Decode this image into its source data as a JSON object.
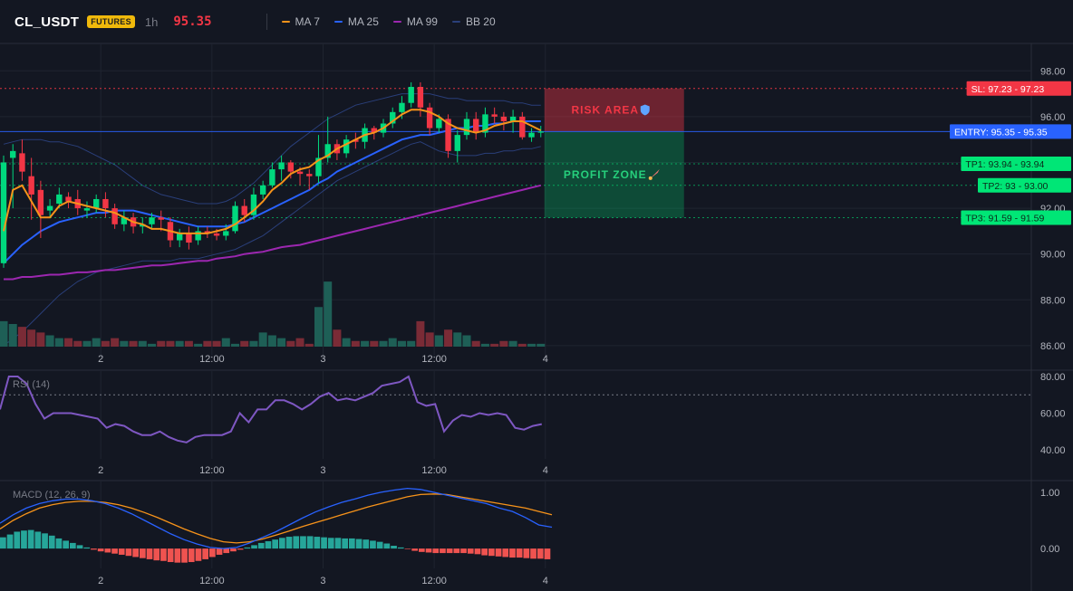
{
  "header": {
    "symbol": "CL_USDT",
    "badge": "FUTURES",
    "timeframe": "1h",
    "price": "95.35",
    "legend": [
      {
        "label": "MA 7",
        "color": "#f7931a"
      },
      {
        "label": "MA 25",
        "color": "#2962ff"
      },
      {
        "label": "MA 99",
        "color": "#9c27b0"
      },
      {
        "label": "BB 20",
        "color": "#2a3f7a"
      }
    ]
  },
  "colors": {
    "bull": "#089981",
    "bull_bright": "#00e676",
    "bear": "#f23645",
    "grid": "#1f2430",
    "axis_text": "#b2b5be",
    "entry": "#2962ff",
    "sl": "#f23645",
    "tp": "#00e676",
    "rsi": "#7e57c2",
    "macd_line": "#2962ff",
    "signal_line": "#f7931a"
  },
  "chart_data": [
    {
      "type": "candlestick",
      "title": "",
      "x_ticks": [
        "2",
        "12:00",
        "3",
        "12:00",
        "4"
      ],
      "x_tick_index": [
        10,
        22,
        34,
        46,
        58
      ],
      "ylim": [
        85.6,
        99.0
      ],
      "y_ticks": [
        86.0,
        88.0,
        90.0,
        92.0,
        94.0,
        96.0,
        98.0
      ],
      "candles": [
        [
          89.6,
          94.0,
          89.4,
          94.3
        ],
        [
          94.2,
          94.5,
          92.0,
          94.8
        ],
        [
          94.4,
          93.6,
          93.2,
          95.0
        ],
        [
          93.4,
          92.6,
          91.5,
          94.2
        ],
        [
          92.8,
          91.7,
          90.7,
          93.2
        ],
        [
          91.9,
          92.1,
          91.6,
          92.4
        ],
        [
          92.2,
          92.6,
          92.0,
          92.9
        ],
        [
          92.5,
          92.3,
          92.0,
          92.7
        ],
        [
          92.4,
          92.0,
          91.7,
          92.8
        ],
        [
          91.9,
          92.0,
          91.6,
          92.3
        ],
        [
          92.0,
          92.4,
          91.8,
          92.6
        ],
        [
          92.4,
          92.0,
          91.6,
          92.7
        ],
        [
          92.0,
          91.3,
          91.1,
          92.2
        ],
        [
          91.3,
          91.6,
          91.0,
          91.9
        ],
        [
          91.6,
          91.2,
          90.9,
          91.8
        ],
        [
          91.2,
          91.3,
          90.9,
          91.6
        ],
        [
          91.3,
          91.6,
          91.1,
          91.8
        ],
        [
          91.6,
          91.5,
          91.0,
          91.9
        ],
        [
          91.4,
          90.6,
          90.3,
          91.6
        ],
        [
          90.6,
          90.9,
          90.3,
          91.1
        ],
        [
          90.9,
          90.5,
          90.2,
          91.2
        ],
        [
          90.6,
          91.0,
          90.4,
          91.2
        ],
        [
          91.0,
          90.9,
          90.7,
          91.2
        ],
        [
          90.9,
          90.8,
          90.6,
          91.1
        ],
        [
          90.8,
          91.0,
          90.6,
          91.3
        ],
        [
          91.0,
          92.1,
          90.9,
          92.3
        ],
        [
          92.1,
          91.7,
          91.4,
          92.4
        ],
        [
          91.7,
          92.6,
          91.5,
          92.9
        ],
        [
          92.6,
          93.0,
          92.4,
          93.2
        ],
        [
          93.0,
          93.7,
          92.9,
          94.0
        ],
        [
          93.7,
          94.0,
          93.2,
          94.3
        ],
        [
          94.0,
          93.6,
          93.3,
          94.1
        ],
        [
          93.6,
          93.5,
          93.0,
          93.8
        ],
        [
          93.5,
          93.4,
          92.8,
          93.7
        ],
        [
          93.4,
          94.2,
          93.1,
          95.2
        ],
        [
          94.2,
          94.8,
          94.0,
          96.0
        ],
        [
          94.8,
          94.4,
          94.1,
          95.0
        ],
        [
          94.4,
          95.0,
          94.2,
          95.2
        ],
        [
          95.0,
          94.9,
          94.6,
          95.3
        ],
        [
          94.9,
          95.5,
          94.6,
          95.7
        ],
        [
          95.5,
          95.3,
          95.0,
          95.6
        ],
        [
          95.3,
          95.7,
          95.1,
          95.9
        ],
        [
          95.7,
          96.2,
          95.5,
          96.4
        ],
        [
          96.2,
          96.6,
          95.9,
          96.9
        ],
        [
          96.6,
          97.3,
          96.4,
          97.5
        ],
        [
          97.3,
          96.4,
          96.0,
          97.5
        ],
        [
          96.4,
          95.5,
          95.2,
          96.6
        ],
        [
          95.5,
          95.9,
          95.3,
          96.1
        ],
        [
          95.9,
          94.5,
          94.2,
          96.1
        ],
        [
          94.5,
          95.2,
          94.0,
          95.4
        ],
        [
          95.2,
          95.9,
          95.0,
          96.2
        ],
        [
          95.9,
          95.3,
          95.0,
          96.2
        ],
        [
          95.3,
          96.1,
          95.1,
          96.4
        ],
        [
          96.1,
          96.0,
          95.7,
          96.4
        ],
        [
          96.0,
          95.8,
          95.4,
          96.2
        ],
        [
          95.8,
          96.0,
          95.3,
          96.3
        ],
        [
          96.0,
          95.1,
          95.0,
          96.2
        ],
        [
          95.1,
          95.3,
          94.9,
          95.5
        ],
        [
          95.3,
          95.35,
          95.1,
          95.6
        ]
      ],
      "volume": [
        9,
        8,
        7,
        6,
        5,
        4,
        3,
        3,
        2,
        2,
        3,
        2,
        3,
        2,
        2,
        2,
        1,
        2,
        2,
        2,
        2,
        1,
        2,
        2,
        3,
        1,
        2,
        2,
        5,
        4,
        3,
        2,
        3,
        1,
        14,
        23,
        6,
        3,
        2,
        2,
        2,
        2,
        3,
        2,
        2,
        9,
        5,
        4,
        6,
        5,
        4,
        2,
        1,
        1,
        2,
        2,
        1,
        1,
        1
      ],
      "ma7": [
        91.0,
        92.8,
        93.0,
        92.3,
        91.6,
        91.6,
        92.1,
        92.3,
        92.2,
        92.1,
        92.0,
        91.9,
        91.8,
        91.6,
        91.4,
        91.3,
        91.1,
        91.1,
        91.0,
        90.9,
        90.9,
        90.9,
        90.9,
        91.0,
        91.1,
        91.3,
        91.6,
        91.9,
        92.3,
        92.8,
        93.1,
        93.5,
        93.7,
        93.8,
        94.1,
        94.3,
        94.6,
        94.8,
        95.0,
        95.2,
        95.3,
        95.5,
        95.8,
        96.1,
        96.3,
        96.3,
        96.2,
        96.0,
        95.7,
        95.5,
        95.4,
        95.3,
        95.4,
        95.6,
        95.7,
        95.8,
        95.8,
        95.6,
        95.4
      ],
      "ma25": [
        89.6,
        90.0,
        90.4,
        90.7,
        91.0,
        91.2,
        91.4,
        91.5,
        91.6,
        91.7,
        91.8,
        91.8,
        91.9,
        91.9,
        91.9,
        91.8,
        91.7,
        91.6,
        91.5,
        91.4,
        91.3,
        91.2,
        91.2,
        91.2,
        91.2,
        91.3,
        91.4,
        91.6,
        91.8,
        92.0,
        92.2,
        92.4,
        92.6,
        92.8,
        93.1,
        93.3,
        93.6,
        93.8,
        94.0,
        94.2,
        94.4,
        94.6,
        94.8,
        95.0,
        95.1,
        95.2,
        95.2,
        95.3,
        95.4,
        95.5,
        95.5,
        95.6,
        95.6,
        95.7,
        95.7,
        95.8,
        95.8,
        95.8,
        95.8
      ],
      "ma99": [
        88.9,
        88.9,
        89.0,
        89.0,
        89.05,
        89.1,
        89.1,
        89.15,
        89.2,
        89.2,
        89.25,
        89.3,
        89.3,
        89.35,
        89.4,
        89.45,
        89.5,
        89.5,
        89.55,
        89.6,
        89.65,
        89.7,
        89.7,
        89.8,
        89.85,
        89.9,
        90.0,
        90.05,
        90.1,
        90.2,
        90.3,
        90.35,
        90.4,
        90.5,
        90.6,
        90.7,
        90.8,
        90.9,
        91.0,
        91.1,
        91.2,
        91.3,
        91.4,
        91.5,
        91.6,
        91.7,
        91.8,
        91.9,
        92.0,
        92.1,
        92.2,
        92.3,
        92.4,
        92.5,
        92.6,
        92.7,
        92.8,
        92.9,
        93.0
      ],
      "bb_upper": [
        94.8,
        94.9,
        95.0,
        95.0,
        95.0,
        94.9,
        94.9,
        94.8,
        94.7,
        94.5,
        94.3,
        94.1,
        93.9,
        93.6,
        93.3,
        93.0,
        92.8,
        92.6,
        92.5,
        92.4,
        92.3,
        92.2,
        92.2,
        92.2,
        92.3,
        92.5,
        92.8,
        93.1,
        93.5,
        93.9,
        94.3,
        94.7,
        95.0,
        95.3,
        95.6,
        95.9,
        96.1,
        96.3,
        96.5,
        96.6,
        96.7,
        96.8,
        96.9,
        97.0,
        97.0,
        97.0,
        97.0,
        96.9,
        96.8,
        96.8,
        96.7,
        96.7,
        96.7,
        96.7,
        96.7,
        96.6,
        96.6,
        96.5,
        96.5
      ],
      "bb_lower": [
        86.0,
        86.3,
        86.6,
        87.0,
        87.4,
        87.8,
        88.2,
        88.5,
        88.8,
        89.0,
        89.2,
        89.3,
        89.4,
        89.5,
        89.6,
        89.7,
        89.7,
        89.7,
        89.7,
        89.8,
        89.8,
        89.8,
        89.9,
        90.0,
        90.1,
        90.2,
        90.4,
        90.6,
        90.8,
        91.1,
        91.4,
        91.7,
        92.0,
        92.3,
        92.6,
        92.9,
        93.2,
        93.4,
        93.6,
        93.8,
        94.0,
        94.2,
        94.4,
        94.6,
        94.8,
        94.9,
        94.7,
        94.5,
        94.4,
        94.3,
        94.3,
        94.3,
        94.4,
        94.4,
        94.5,
        94.5,
        94.6,
        94.6,
        94.7
      ],
      "levels": [
        {
          "name": "SL",
          "label": "SL: 97.23",
          "price_text": "97.23",
          "value": 97.23,
          "kind": "sl"
        },
        {
          "name": "ENTRY",
          "label": "ENTRY: 95.35",
          "price_text": "95.35",
          "value": 95.35,
          "kind": "entry"
        },
        {
          "name": "TP1",
          "label": "TP1: 93.94",
          "price_text": "93.94",
          "value": 93.94,
          "kind": "tp"
        },
        {
          "name": "TP2",
          "label": "TP2: 93",
          "price_text": "93.00",
          "value": 93.0,
          "kind": "tp"
        },
        {
          "name": "TP3",
          "label": "TP3: 91.59",
          "price_text": "91.59",
          "value": 91.59,
          "kind": "tp"
        }
      ],
      "zones": [
        {
          "label": "RISK AREA",
          "icon": "shield-icon",
          "from": 95.35,
          "to": 97.23,
          "kind": "risk"
        },
        {
          "label": "PROFIT ZONE",
          "icon": "rocket-icon",
          "from": 91.59,
          "to": 95.35,
          "kind": "profit"
        }
      ]
    },
    {
      "type": "line",
      "title": "RSI (14)",
      "ylim": [
        36,
        82
      ],
      "y_ticks": [
        40.0,
        60.0,
        80.0
      ],
      "reference": 70,
      "values": [
        62,
        80,
        80,
        76,
        65,
        57,
        60,
        60,
        60,
        59,
        58,
        57,
        52,
        54,
        53,
        50,
        48,
        48,
        50,
        47,
        45,
        44,
        47,
        48,
        48,
        48,
        50,
        60,
        55,
        62,
        62,
        67,
        67,
        65,
        62,
        65,
        69,
        71,
        67,
        68,
        67,
        69,
        71,
        75,
        76,
        77,
        80,
        66,
        64,
        65,
        50,
        56,
        59,
        58,
        60,
        59,
        60,
        59,
        52,
        51,
        53,
        54
      ]
    },
    {
      "type": "bar",
      "title": "MACD (12, 26, 9)",
      "ylim": [
        -0.32,
        1.16
      ],
      "y_ticks": [
        0.0,
        1.0
      ],
      "histogram": [
        0.2,
        0.25,
        0.3,
        0.32,
        0.33,
        0.3,
        0.27,
        0.23,
        0.18,
        0.14,
        0.1,
        0.06,
        0.02,
        -0.02,
        -0.05,
        -0.07,
        -0.09,
        -0.11,
        -0.13,
        -0.15,
        -0.17,
        -0.19,
        -0.21,
        -0.22,
        -0.24,
        -0.25,
        -0.25,
        -0.24,
        -0.22,
        -0.19,
        -0.15,
        -0.11,
        -0.08,
        -0.05,
        -0.02,
        0.02,
        0.06,
        0.1,
        0.13,
        0.16,
        0.19,
        0.21,
        0.22,
        0.22,
        0.22,
        0.21,
        0.2,
        0.19,
        0.19,
        0.18,
        0.18,
        0.17,
        0.16,
        0.14,
        0.12,
        0.09,
        0.05,
        0.02,
        -0.01,
        -0.04,
        -0.06,
        -0.07,
        -0.08,
        -0.08,
        -0.08,
        -0.08,
        -0.08,
        -0.09,
        -0.1,
        -0.12,
        -0.13,
        -0.14,
        -0.15,
        -0.16,
        -0.16,
        -0.17,
        -0.18,
        -0.18,
        -0.19
      ],
      "macd_line": [
        0.45,
        0.6,
        0.72,
        0.8,
        0.85,
        0.88,
        0.88,
        0.85,
        0.8,
        0.72,
        0.62,
        0.5,
        0.38,
        0.26,
        0.16,
        0.08,
        0.02,
        0.0,
        0.02,
        0.1,
        0.2,
        0.3,
        0.42,
        0.54,
        0.65,
        0.74,
        0.82,
        0.88,
        0.95,
        1.0,
        1.04,
        1.07,
        1.05,
        1.0,
        0.95,
        0.9,
        0.85,
        0.8,
        0.72,
        0.66,
        0.55,
        0.42,
        0.38
      ],
      "signal_line": [
        0.35,
        0.5,
        0.62,
        0.72,
        0.78,
        0.82,
        0.84,
        0.84,
        0.82,
        0.78,
        0.72,
        0.64,
        0.55,
        0.45,
        0.35,
        0.26,
        0.18,
        0.12,
        0.1,
        0.12,
        0.17,
        0.24,
        0.31,
        0.39,
        0.46,
        0.53,
        0.6,
        0.67,
        0.74,
        0.8,
        0.86,
        0.92,
        0.96,
        0.97,
        0.96,
        0.92,
        0.88,
        0.84,
        0.8,
        0.76,
        0.72,
        0.66,
        0.6
      ]
    }
  ]
}
